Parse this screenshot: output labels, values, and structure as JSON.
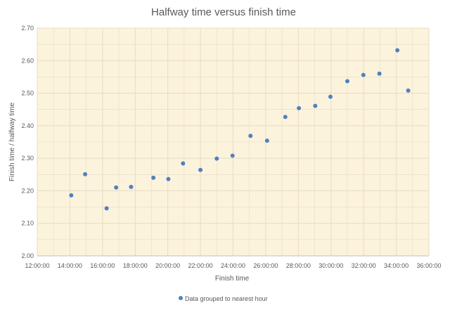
{
  "chart_data": {
    "type": "scatter",
    "title": "Halfway time versus finish time",
    "xlabel": "Finish time",
    "ylabel": "Finish time / halfway time",
    "xlim": [
      "12:00:00",
      "36:00:00"
    ],
    "ylim": [
      2.0,
      2.7
    ],
    "x_ticks": [
      "12:00:00",
      "14:00:00",
      "16:00:00",
      "18:00:00",
      "20:00:00",
      "22:00:00",
      "24:00:00",
      "26:00:00",
      "28:00:00",
      "30:00:00",
      "32:00:00",
      "34:00:00",
      "36:00:00"
    ],
    "y_ticks": [
      "2.00",
      "2.10",
      "2.20",
      "2.30",
      "2.40",
      "2.50",
      "2.60",
      "2.70"
    ],
    "grid": true,
    "legend_position": "bottom",
    "plot_background": "#fcf3dc",
    "grid_color": "#e6dcc4",
    "marker_color": "#4f81bd",
    "series": [
      {
        "name": "Data grouped to nearest hour",
        "points": [
          {
            "x": "14:05:00",
            "y": 2.186
          },
          {
            "x": "14:56:00",
            "y": 2.251
          },
          {
            "x": "16:15:00",
            "y": 2.146
          },
          {
            "x": "16:50:00",
            "y": 2.21
          },
          {
            "x": "17:45:00",
            "y": 2.212
          },
          {
            "x": "19:07:00",
            "y": 2.24
          },
          {
            "x": "20:02:00",
            "y": 2.236
          },
          {
            "x": "20:56:00",
            "y": 2.284
          },
          {
            "x": "22:00:00",
            "y": 2.264
          },
          {
            "x": "23:00:00",
            "y": 2.299
          },
          {
            "x": "23:58:00",
            "y": 2.308
          },
          {
            "x": "25:04:00",
            "y": 2.369
          },
          {
            "x": "26:05:00",
            "y": 2.354
          },
          {
            "x": "27:12:00",
            "y": 2.427
          },
          {
            "x": "28:02:00",
            "y": 2.454
          },
          {
            "x": "29:02:00",
            "y": 2.461
          },
          {
            "x": "29:58:00",
            "y": 2.489
          },
          {
            "x": "31:00:00",
            "y": 2.537
          },
          {
            "x": "31:59:00",
            "y": 2.556
          },
          {
            "x": "32:58:00",
            "y": 2.56
          },
          {
            "x": "34:04:00",
            "y": 2.632
          },
          {
            "x": "34:44:00",
            "y": 2.508
          }
        ]
      }
    ]
  }
}
